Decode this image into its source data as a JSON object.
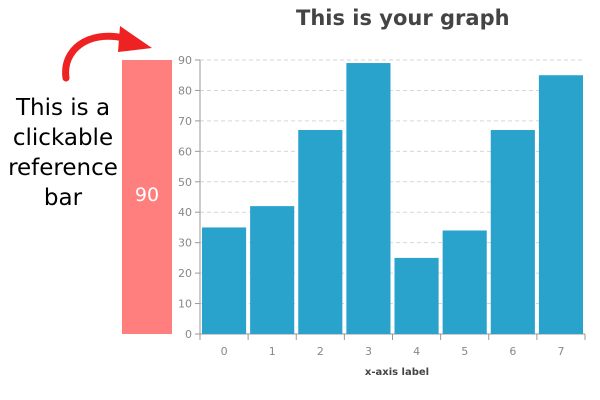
{
  "callout": {
    "lines": [
      "This is a",
      "clickable",
      "reference",
      "bar"
    ],
    "arrow_color": "#ee2222"
  },
  "reference_bar": {
    "value": 90,
    "label": "90",
    "color": "#ff7f7f"
  },
  "chart_data": {
    "type": "bar",
    "title": "This is your graph",
    "xlabel": "x-axis label",
    "ylabel": "",
    "categories": [
      "0",
      "1",
      "2",
      "3",
      "4",
      "5",
      "6",
      "7"
    ],
    "values": [
      35,
      42,
      67,
      89,
      25,
      34,
      67,
      85
    ],
    "ylim": [
      0,
      90
    ],
    "yticks": [
      0,
      10,
      20,
      30,
      40,
      50,
      60,
      70,
      80,
      90
    ],
    "grid": true,
    "bar_color": "#29a2cc"
  }
}
